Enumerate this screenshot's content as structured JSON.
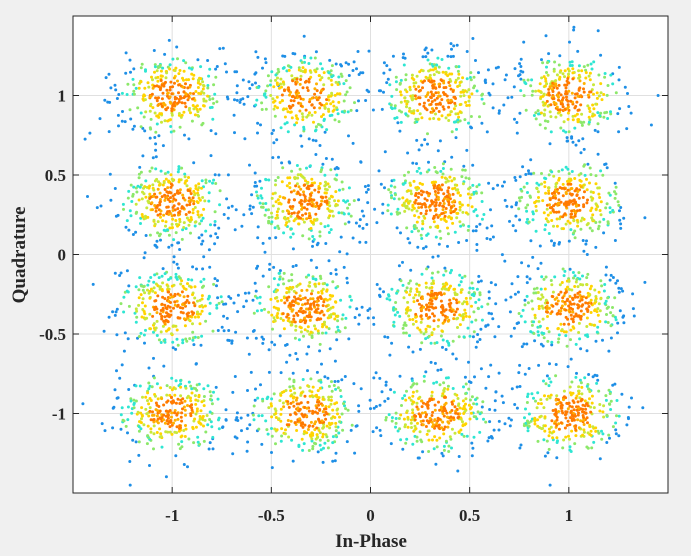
{
  "chart_data": {
    "type": "scatter",
    "title": "",
    "xlabel": "In-Phase",
    "ylabel": "Quadrature",
    "xlim": [
      -1.5,
      1.5
    ],
    "ylim": [
      -1.5,
      1.5
    ],
    "x_ticks": [
      -1,
      -0.5,
      0,
      0.5,
      1
    ],
    "y_ticks": [
      -1,
      -0.5,
      0,
      0.5,
      1
    ],
    "x_tick_labels": [
      "-1",
      "-0.5",
      "0",
      "0.5",
      "1"
    ],
    "y_tick_labels": [
      "-1",
      "-0.5",
      "0",
      "0.5",
      "1"
    ],
    "grid": true,
    "colormap": "jet (point density)",
    "constellation": "16-QAM",
    "cluster_centers": {
      "x": [
        -1,
        -0.333,
        0.333,
        1
      ],
      "y": [
        -1,
        -0.333,
        0.333,
        1
      ]
    },
    "cluster_spread": 0.13,
    "colors": {
      "background": "#f0f0f0",
      "plot_area": "#ffffff",
      "low_density": "#1e8fe6",
      "mid_density": "#2ee6d2",
      "high_density": "#ffd400",
      "peak_density": "#ff7a00"
    }
  }
}
